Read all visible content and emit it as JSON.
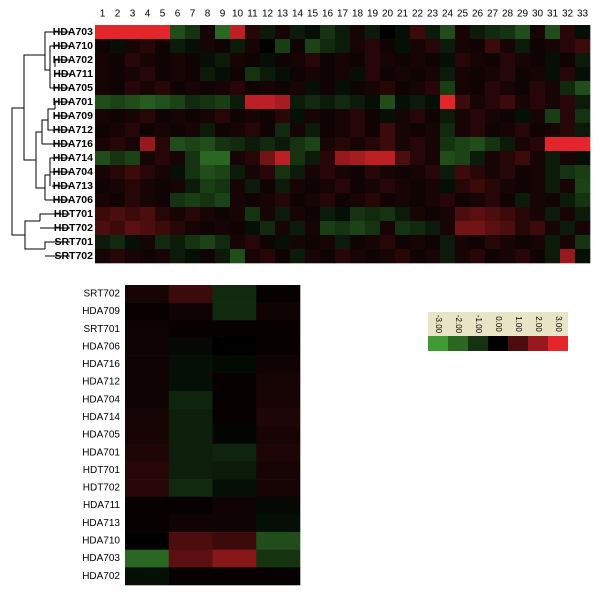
{
  "chart_data": [
    {
      "type": "heatmap",
      "categories": [
        1,
        2,
        3,
        4,
        5,
        6,
        7,
        8,
        9,
        10,
        11,
        12,
        13,
        14,
        15,
        16,
        17,
        18,
        19,
        20,
        21,
        22,
        23,
        24,
        25,
        26,
        27,
        28,
        29,
        30,
        31,
        32,
        33
      ],
      "rows": [
        "HDA703",
        "HDA710",
        "HDA702",
        "HDA711",
        "HDA705",
        "HDA701",
        "HDA709",
        "HDA712",
        "HDA716",
        "HDA714",
        "HDA704",
        "HDA713",
        "HDA706",
        "HDT701",
        "HDT702",
        "SRT701",
        "SRT702"
      ],
      "values": [
        [
          3,
          3,
          3,
          3,
          3,
          -1.5,
          -1,
          0.3,
          -2,
          2.5,
          0.5,
          -0.5,
          0.3,
          -0.5,
          -0.3,
          -1,
          -0.5,
          0.3,
          -0.5,
          0,
          -0.3,
          0.8,
          -0.5,
          -1.5,
          0.3,
          -0.5,
          -0.8,
          -1,
          -1.5,
          0.3,
          -1.5,
          0.5,
          -0.3
        ],
        [
          0.2,
          -0.3,
          0.3,
          0.5,
          0.2,
          -0.5,
          -0.3,
          0.3,
          0.2,
          -0.5,
          0.3,
          0,
          -1.2,
          0.2,
          -1.3,
          -0.8,
          -0.5,
          0.3,
          0.5,
          0.2,
          -0.3,
          0.3,
          0.5,
          -0.5,
          0.3,
          0.2,
          0.8,
          0.3,
          -0.5,
          0.2,
          0.3,
          0.5,
          0.8
        ],
        [
          0.3,
          0.2,
          0.5,
          0.3,
          0.2,
          0.3,
          0.2,
          -0.3,
          -0.5,
          0.3,
          0.2,
          -0.3,
          0.2,
          0.3,
          0.5,
          0.2,
          0.3,
          0.2,
          0.5,
          0.3,
          0.2,
          0.3,
          0.2,
          -0.3,
          0.5,
          0.3,
          0.2,
          0.5,
          0.3,
          0.2,
          -0.3,
          0.2,
          -0.5
        ],
        [
          0.3,
          0.2,
          0.3,
          0.5,
          0.2,
          0.3,
          0.2,
          -0.5,
          -0.3,
          0.2,
          -1,
          -0.5,
          -0.3,
          0.2,
          0.3,
          0.2,
          0.3,
          -0.3,
          0.5,
          0.2,
          0.3,
          0.2,
          0.3,
          -0.5,
          0.3,
          0.2,
          0.3,
          0.5,
          0.2,
          0.3,
          -0.3,
          0.5,
          -0.3
        ],
        [
          0.3,
          0.2,
          0.5,
          0.3,
          0.5,
          0.2,
          0.3,
          0.2,
          0.3,
          0.5,
          0.2,
          0.3,
          0.2,
          0.3,
          -0.3,
          0.2,
          -0.3,
          0.2,
          0.3,
          0.5,
          0.2,
          0.3,
          0.5,
          -1.2,
          0.3,
          0.2,
          0.5,
          0.3,
          0.2,
          0.5,
          0.3,
          -0.8,
          -1.5
        ],
        [
          -1.5,
          -1.3,
          -1.5,
          -1.8,
          -1.6,
          -1.3,
          -0.8,
          -1,
          -1.2,
          -0.5,
          2.5,
          2.5,
          2.2,
          -0.5,
          -0.8,
          -0.5,
          -0.8,
          -0.5,
          -0.3,
          -1.5,
          -0.3,
          -0.5,
          -0.3,
          3,
          0.8,
          0.3,
          0.5,
          0.8,
          0.3,
          0.5,
          0.3,
          0.5,
          -0.5
        ],
        [
          0.3,
          0.2,
          0.3,
          0.5,
          0.2,
          0.3,
          0.2,
          0.3,
          0.5,
          0.2,
          0.3,
          0.2,
          0.5,
          -0.3,
          0.3,
          0.2,
          0.3,
          0.5,
          0.2,
          -0.3,
          0.3,
          0.5,
          0.2,
          -0.5,
          0.3,
          0.5,
          0.3,
          0.2,
          -0.3,
          0.3,
          -1.2,
          0.5,
          -1
        ],
        [
          0.2,
          0.3,
          0.5,
          0.2,
          0.3,
          0.2,
          0.3,
          -0.5,
          0.2,
          0.3,
          0.5,
          0.2,
          -0.8,
          0.3,
          -0.5,
          0.2,
          0.3,
          0.5,
          0.2,
          0.8,
          0.3,
          0.2,
          0.3,
          -0.8,
          0.3,
          0.5,
          0.2,
          0.3,
          0.5,
          0.2,
          0.3,
          0.5,
          -0.5
        ],
        [
          0.3,
          0.5,
          0.3,
          2,
          0.5,
          -1.5,
          -1.3,
          -1.5,
          -1,
          -0.8,
          -0.5,
          -0.8,
          -0.5,
          -1,
          -1.3,
          0.3,
          0.5,
          0.3,
          0.5,
          0.8,
          0.3,
          0.5,
          0.3,
          -1,
          -1.3,
          -1.5,
          -1,
          -0.5,
          0.3,
          0.5,
          3,
          3,
          3
        ],
        [
          -1.5,
          -1,
          -1.3,
          0.3,
          0.5,
          0.3,
          -1,
          -2,
          -2,
          0.3,
          0.5,
          1.5,
          2.5,
          -1,
          -0.5,
          0.5,
          2,
          2.2,
          2.5,
          2.5,
          1,
          0.5,
          0.3,
          -1.5,
          -1.3,
          -0.5,
          0.3,
          0.5,
          0.8,
          0.3,
          -0.5,
          0.3,
          -0.3
        ],
        [
          0.3,
          0.5,
          0.8,
          0.5,
          0.3,
          -0.3,
          -1,
          -1.5,
          -1.3,
          -0.5,
          0.3,
          0.5,
          -1,
          -0.5,
          0.3,
          0.5,
          0.3,
          0.2,
          0.5,
          0.3,
          0.2,
          0.3,
          0.5,
          -0.5,
          0.8,
          0.5,
          0.3,
          0.5,
          0.2,
          0.3,
          -0.5,
          -1,
          -1.2
        ],
        [
          0.2,
          0.3,
          0.5,
          0.3,
          0.2,
          0.3,
          -0.5,
          -1.2,
          -1,
          0.3,
          -0.5,
          0.2,
          -0.5,
          0.3,
          0.2,
          0.3,
          0.5,
          0.2,
          0.3,
          0.5,
          0.3,
          0.2,
          0.3,
          -0.3,
          0.5,
          0.8,
          0.5,
          0.3,
          0.2,
          0.3,
          -0.5,
          0.3,
          -1.3
        ],
        [
          0.3,
          0.2,
          0.5,
          0.3,
          0.2,
          -1,
          -1.2,
          -1,
          -1.3,
          0.3,
          0.2,
          0.3,
          0.5,
          0.2,
          0.3,
          0.5,
          0.2,
          0.3,
          0.5,
          0.2,
          0.3,
          0.2,
          0.3,
          0.5,
          0.2,
          0.3,
          0.5,
          0.2,
          -0.5,
          0.3,
          0.2,
          -0.5,
          -1
        ],
        [
          0.8,
          1,
          0.8,
          1,
          0.5,
          0.3,
          0.5,
          0.3,
          0.2,
          0.3,
          -1,
          0.3,
          -0.5,
          0.3,
          0.2,
          -0.5,
          -0.3,
          -1,
          -0.8,
          -1,
          -0.5,
          0.3,
          0.2,
          0.3,
          1,
          1.2,
          1,
          0.8,
          0.5,
          0.3,
          -0.5,
          0.3,
          -0.5
        ],
        [
          1,
          0.8,
          1.2,
          1,
          0.8,
          0.5,
          0.3,
          0.2,
          0.3,
          0.2,
          -0.3,
          -0.8,
          0.3,
          -0.5,
          0.3,
          -1.2,
          -1,
          -1.3,
          -1,
          0.3,
          -1,
          -0.8,
          -0.5,
          0.3,
          1.5,
          1.5,
          1.2,
          1,
          0.5,
          0.8,
          0.3,
          -0.5,
          0.3
        ],
        [
          -0.5,
          -0.8,
          -0.3,
          0.3,
          -0.8,
          -0.5,
          -1,
          -1.3,
          -0.8,
          0.3,
          0.5,
          0.2,
          -0.3,
          0.3,
          0.2,
          0.3,
          -0.5,
          0.2,
          0.3,
          0.5,
          0.2,
          0.3,
          0.2,
          -0.5,
          0.3,
          0.2,
          0.5,
          0.3,
          0.2,
          0.3,
          -0.5,
          0.3,
          -1
        ],
        [
          0.3,
          0.5,
          0.3,
          0.2,
          0.3,
          -0.5,
          -0.3,
          0.2,
          -0.5,
          -1.5,
          0.3,
          0.5,
          0.2,
          -0.5,
          0.3,
          0.2,
          0.5,
          0.3,
          0.2,
          0.3,
          0.5,
          0.2,
          0.3,
          -0.5,
          0.3,
          0.5,
          0.2,
          0.3,
          0.5,
          0.2,
          -0.5,
          2,
          -0.3
        ]
      ],
      "clim": [
        -3,
        3
      ],
      "colors": [
        "#3f9a33",
        "#000000",
        "#e3262b"
      ],
      "colorbar": {
        "ticks": [
          {
            "value": -3,
            "label": "-3.00"
          },
          {
            "value": -2,
            "label": "-2.00"
          },
          {
            "value": -1,
            "label": "-1.00"
          },
          {
            "value": 0,
            "label": "0.00"
          },
          {
            "value": 1,
            "label": "1.00"
          },
          {
            "value": 2,
            "label": "2.00"
          },
          {
            "value": 3,
            "label": "3.00"
          }
        ]
      }
    },
    {
      "type": "heatmap",
      "rows": [
        "SRT702",
        "HDA709",
        "SRT701",
        "HDA706",
        "HDA716",
        "HDA712",
        "HDA704",
        "HDA714",
        "HDA705",
        "HDA701",
        "HDT701",
        "HDT702",
        "HDA711",
        "HDA713",
        "HDA710",
        "HDA703",
        "HDA702"
      ],
      "values": [
        [
          0.3,
          0.8,
          -0.8,
          0.1
        ],
        [
          0.1,
          0.2,
          -0.8,
          0.2
        ],
        [
          0.2,
          0.1,
          0.1,
          0.1
        ],
        [
          0.2,
          -0.2,
          0,
          0.1
        ],
        [
          0.2,
          -0.3,
          -0.2,
          0.2
        ],
        [
          0.2,
          -0.3,
          0.1,
          0.3
        ],
        [
          0.2,
          -0.7,
          0.1,
          0.3
        ],
        [
          0.3,
          -0.6,
          0.1,
          0.4
        ],
        [
          0.3,
          -0.6,
          -0.1,
          0.3
        ],
        [
          0.4,
          -0.6,
          -0.7,
          0.4
        ],
        [
          0.5,
          -0.6,
          -0.5,
          0.3
        ],
        [
          0.5,
          -0.8,
          -0.3,
          0.3
        ],
        [
          0.1,
          0.1,
          0.2,
          -0.2
        ],
        [
          0.1,
          0.2,
          0.2,
          -0.3
        ],
        [
          0,
          1,
          0.8,
          -1.5
        ],
        [
          -2,
          1.2,
          1.8,
          -1
        ],
        [
          -0.3,
          0.1,
          0.1,
          0.1
        ]
      ],
      "clim": [
        -3,
        3
      ],
      "colors": [
        "#3f9a33",
        "#000000",
        "#e3262b"
      ]
    }
  ]
}
